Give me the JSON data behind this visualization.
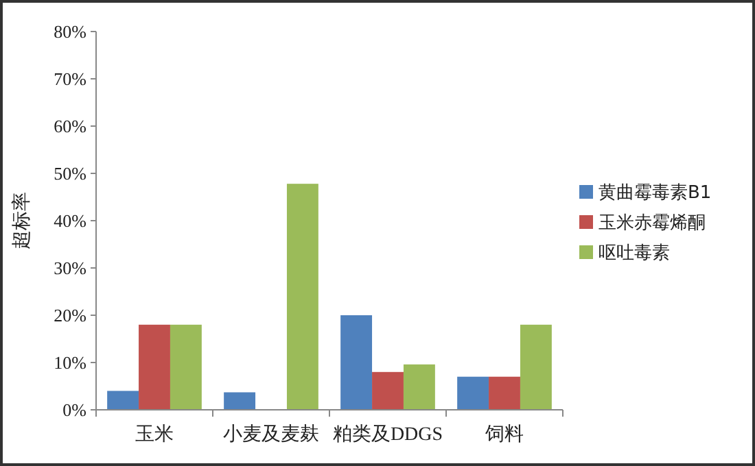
{
  "chart_data": {
    "type": "bar",
    "ylabel": "超标率",
    "categories": [
      "玉米",
      "小麦及麦麸",
      "粕类及DDGS",
      "饲料"
    ],
    "series": [
      {
        "name": "黄曲霉毒素B1",
        "color": "#4f81bd",
        "values": [
          4,
          3.7,
          20,
          7
        ]
      },
      {
        "name": "玉米赤霉烯酮",
        "color": "#c0504d",
        "values": [
          18,
          null,
          8,
          7
        ]
      },
      {
        "name": "呕吐毒素",
        "color": "#9bbb59",
        "values": [
          18,
          47.8,
          9.6,
          18
        ]
      }
    ],
    "ylim": [
      0,
      80
    ],
    "yticks": [
      {
        "value": 0,
        "label": "0%"
      },
      {
        "value": 10,
        "label": "10%"
      },
      {
        "value": 20,
        "label": "20%"
      },
      {
        "value": 30,
        "label": "30%"
      },
      {
        "value": 40,
        "label": "40%"
      },
      {
        "value": 50,
        "label": "50%"
      },
      {
        "value": 60,
        "label": "60%"
      },
      {
        "value": 70,
        "label": "70%"
      },
      {
        "value": 80,
        "label": "80%"
      }
    ],
    "grid": false,
    "legend": "right"
  }
}
